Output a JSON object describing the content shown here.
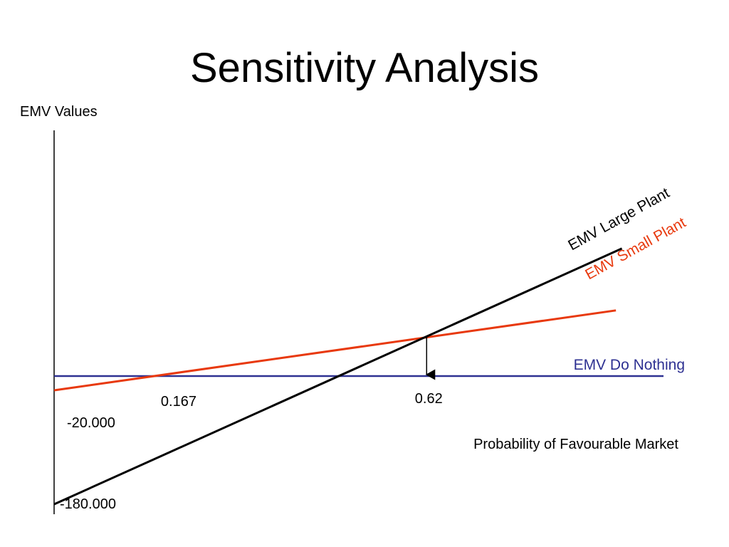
{
  "slide": {
    "title": "Sensitivity Analysis"
  },
  "chart_data": {
    "type": "line",
    "title": "Sensitivity Analysis",
    "ylabel": "EMV Values",
    "xlabel": "Probability of Favourable Market",
    "xlim": [
      0,
      1
    ],
    "ylim": [
      -180000,
      200000
    ],
    "series": [
      {
        "name": "EMV Large Plant",
        "color": "#000000",
        "x": [
          0,
          1
        ],
        "y": [
          -180000,
          200000
        ]
      },
      {
        "name": "EMV Small Plant",
        "color": "#e8390e",
        "x": [
          0,
          1
        ],
        "y": [
          -20000,
          100000
        ]
      },
      {
        "name": "EMV Do Nothing",
        "color": "#2e3192",
        "x": [
          0,
          1
        ],
        "y": [
          0,
          0
        ]
      }
    ],
    "annotations": {
      "small_plant_intercept": {
        "x": 0,
        "y": -20000,
        "label": "-20.000"
      },
      "large_plant_intercept": {
        "x": 0,
        "y": -180000,
        "label": "-180.000"
      },
      "breakeven_small": {
        "x": 0.167,
        "label": "0.167"
      },
      "breakeven_large_small": {
        "x": 0.62,
        "label": "0.62"
      }
    }
  }
}
